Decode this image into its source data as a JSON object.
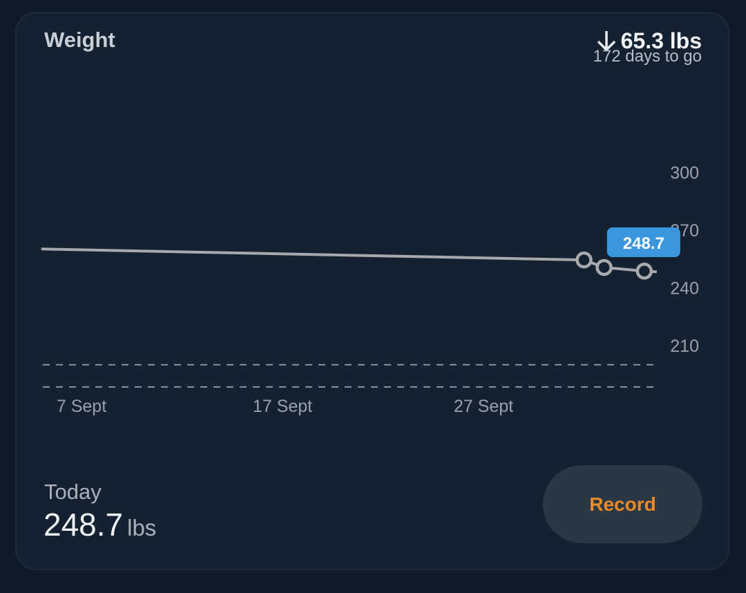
{
  "card": {
    "title": "Weight",
    "goal": {
      "icon": "arrow-down-icon",
      "remaining": "65.3 lbs",
      "days_left": "172 days to go"
    },
    "today": {
      "label": "Today",
      "value": "248.7",
      "unit": "lbs"
    },
    "record_button": "Record"
  },
  "colors": {
    "background": "#142131",
    "line": "#a7a9ac",
    "tooltip": "#3b97dd",
    "record_text": "#e98a26"
  },
  "chart_data": {
    "type": "line",
    "x_ticks": [
      "7 Sept",
      "17 Sept",
      "27 Sept"
    ],
    "y_ticks": [
      300,
      270,
      240,
      210
    ],
    "y_axis_position": "right",
    "grid": false,
    "series": [
      {
        "points": [
          {
            "x": "5 Sept",
            "y": 260.2
          },
          {
            "x": "2 Oct",
            "y": 254.5
          }
        ]
      },
      {
        "markers": true,
        "points": [
          {
            "x": "2 Oct",
            "y": 254.5
          },
          {
            "x": "3 Oct",
            "y": 250.6
          },
          {
            "x": "5 Oct",
            "y": 248.7
          }
        ]
      }
    ],
    "reference_lines": [
      200,
      188.5
    ],
    "tooltip": {
      "x": "5 Oct",
      "label": "248.7"
    }
  }
}
